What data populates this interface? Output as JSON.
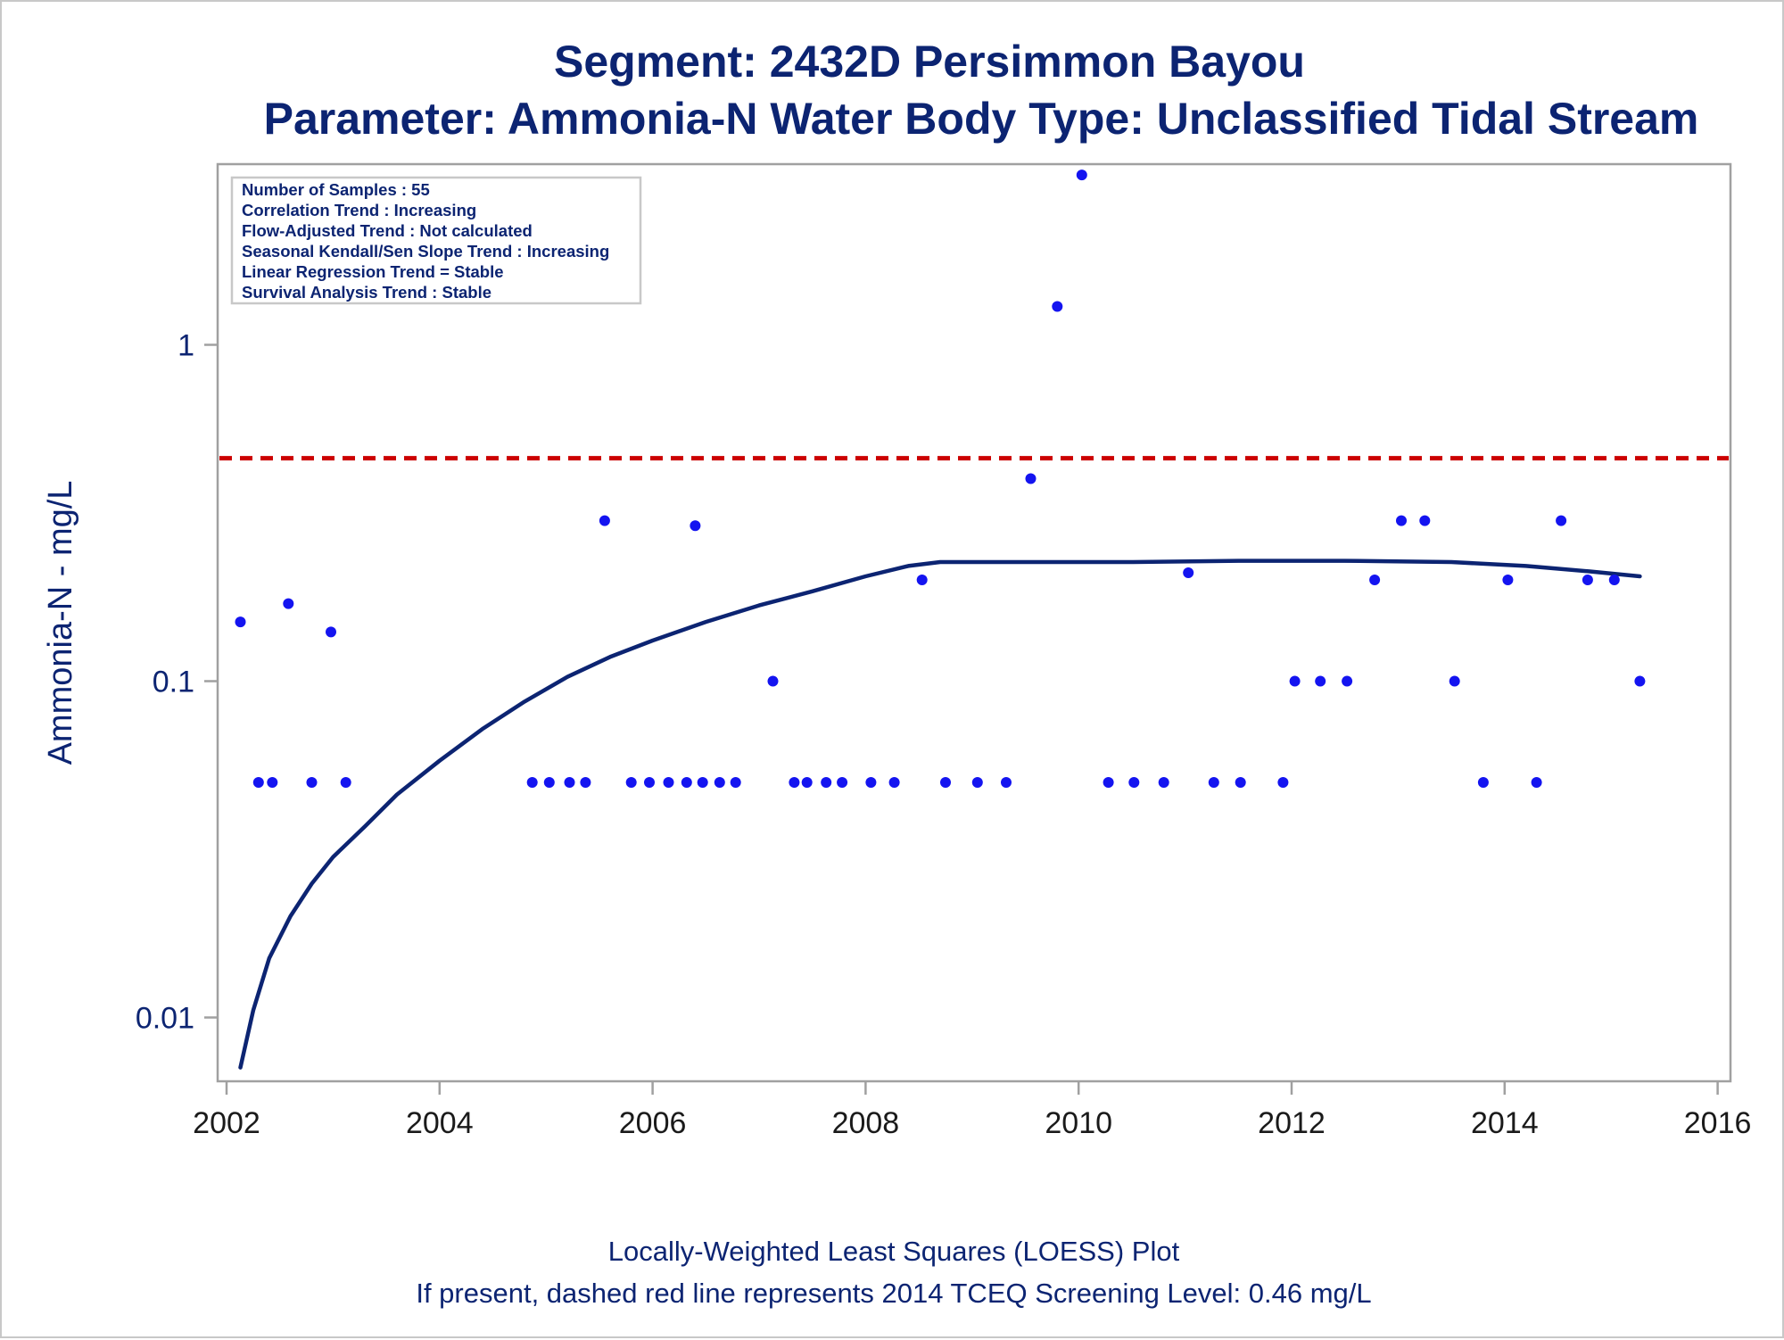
{
  "colors": {
    "text": "#0c2472",
    "tick_text": "#1a1a1a",
    "frame": "#a0a0a0",
    "points": "#1414f0",
    "loess": "#0c2472",
    "screening": "#cc0000"
  },
  "chart_data": {
    "type": "scatter",
    "title": "Segment: 2432D  Persimmon Bayou",
    "subtitle": "Parameter: Ammonia-N   Water Body Type: Unclassified Tidal Stream",
    "xlabel": "",
    "ylabel": "Ammonia-N - mg/L",
    "y_scale": "log",
    "xlim": [
      2002,
      2016
    ],
    "ylim": [
      0.007,
      4.1
    ],
    "xticks": [
      2002,
      2004,
      2006,
      2008,
      2010,
      2012,
      2014,
      2016
    ],
    "yticks": [
      {
        "value": 0.01,
        "label": "0.01"
      },
      {
        "value": 0.1,
        "label": "0.1"
      },
      {
        "value": 1,
        "label": "1"
      }
    ],
    "grid": false,
    "info_box": {
      "position": "top-left",
      "lines": [
        "Number of Samples : 55",
        "Correlation Trend : Increasing",
        "Flow-Adjusted Trend : Not calculated",
        "Seasonal Kendall/Sen Slope Trend : Increasing",
        "Linear Regression Trend = Stable",
        "Survival Analysis Trend : Stable"
      ]
    },
    "screening_level": 0.46,
    "footnotes": [
      "Locally-Weighted Least Squares (LOESS) Plot",
      "If present, dashed red line represents 2014 TCEQ Screening Level: 0.46 mg/L"
    ],
    "points": [
      {
        "x": 2002.13,
        "y": 0.15
      },
      {
        "x": 2002.3,
        "y": 0.05
      },
      {
        "x": 2002.43,
        "y": 0.05
      },
      {
        "x": 2002.58,
        "y": 0.17
      },
      {
        "x": 2002.8,
        "y": 0.05
      },
      {
        "x": 2002.98,
        "y": 0.14
      },
      {
        "x": 2003.12,
        "y": 0.05
      },
      {
        "x": 2004.87,
        "y": 0.05
      },
      {
        "x": 2005.03,
        "y": 0.05
      },
      {
        "x": 2005.22,
        "y": 0.05
      },
      {
        "x": 2005.37,
        "y": 0.05
      },
      {
        "x": 2005.55,
        "y": 0.3
      },
      {
        "x": 2005.8,
        "y": 0.05
      },
      {
        "x": 2005.97,
        "y": 0.05
      },
      {
        "x": 2006.15,
        "y": 0.05
      },
      {
        "x": 2006.32,
        "y": 0.05
      },
      {
        "x": 2006.4,
        "y": 0.29
      },
      {
        "x": 2006.47,
        "y": 0.05
      },
      {
        "x": 2006.63,
        "y": 0.05
      },
      {
        "x": 2006.78,
        "y": 0.05
      },
      {
        "x": 2007.13,
        "y": 0.1
      },
      {
        "x": 2007.33,
        "y": 0.05
      },
      {
        "x": 2007.45,
        "y": 0.05
      },
      {
        "x": 2007.63,
        "y": 0.05
      },
      {
        "x": 2007.78,
        "y": 0.05
      },
      {
        "x": 2008.05,
        "y": 0.05
      },
      {
        "x": 2008.27,
        "y": 0.05
      },
      {
        "x": 2008.53,
        "y": 0.2
      },
      {
        "x": 2008.75,
        "y": 0.05
      },
      {
        "x": 2009.05,
        "y": 0.05
      },
      {
        "x": 2009.32,
        "y": 0.05
      },
      {
        "x": 2009.55,
        "y": 0.4
      },
      {
        "x": 2009.8,
        "y": 1.3
      },
      {
        "x": 2010.03,
        "y": 3.2
      },
      {
        "x": 2010.28,
        "y": 0.05
      },
      {
        "x": 2010.52,
        "y": 0.05
      },
      {
        "x": 2010.8,
        "y": 0.05
      },
      {
        "x": 2011.03,
        "y": 0.21
      },
      {
        "x": 2011.27,
        "y": 0.05
      },
      {
        "x": 2011.52,
        "y": 0.05
      },
      {
        "x": 2011.92,
        "y": 0.05
      },
      {
        "x": 2012.03,
        "y": 0.1
      },
      {
        "x": 2012.27,
        "y": 0.1
      },
      {
        "x": 2012.52,
        "y": 0.1
      },
      {
        "x": 2012.78,
        "y": 0.2
      },
      {
        "x": 2013.03,
        "y": 0.3
      },
      {
        "x": 2013.25,
        "y": 0.3
      },
      {
        "x": 2013.53,
        "y": 0.1
      },
      {
        "x": 2013.8,
        "y": 0.05
      },
      {
        "x": 2014.03,
        "y": 0.2
      },
      {
        "x": 2014.3,
        "y": 0.05
      },
      {
        "x": 2014.53,
        "y": 0.3
      },
      {
        "x": 2014.78,
        "y": 0.2
      },
      {
        "x": 2015.03,
        "y": 0.2
      },
      {
        "x": 2015.27,
        "y": 0.1
      }
    ],
    "loess": [
      {
        "x": 2002.13,
        "y": 0.0071
      },
      {
        "x": 2002.25,
        "y": 0.0105
      },
      {
        "x": 2002.4,
        "y": 0.015
      },
      {
        "x": 2002.6,
        "y": 0.02
      },
      {
        "x": 2002.8,
        "y": 0.025
      },
      {
        "x": 2003.0,
        "y": 0.03
      },
      {
        "x": 2003.3,
        "y": 0.037
      },
      {
        "x": 2003.6,
        "y": 0.046
      },
      {
        "x": 2004.0,
        "y": 0.058
      },
      {
        "x": 2004.4,
        "y": 0.072
      },
      {
        "x": 2004.8,
        "y": 0.087
      },
      {
        "x": 2005.2,
        "y": 0.103
      },
      {
        "x": 2005.6,
        "y": 0.118
      },
      {
        "x": 2006.0,
        "y": 0.132
      },
      {
        "x": 2006.5,
        "y": 0.15
      },
      {
        "x": 2007.0,
        "y": 0.168
      },
      {
        "x": 2007.5,
        "y": 0.185
      },
      {
        "x": 2008.0,
        "y": 0.205
      },
      {
        "x": 2008.4,
        "y": 0.22
      },
      {
        "x": 2008.7,
        "y": 0.226
      },
      {
        "x": 2009.5,
        "y": 0.226
      },
      {
        "x": 2010.5,
        "y": 0.226
      },
      {
        "x": 2011.5,
        "y": 0.228
      },
      {
        "x": 2012.5,
        "y": 0.228
      },
      {
        "x": 2013.5,
        "y": 0.226
      },
      {
        "x": 2014.2,
        "y": 0.22
      },
      {
        "x": 2014.8,
        "y": 0.212
      },
      {
        "x": 2015.27,
        "y": 0.205
      }
    ]
  }
}
